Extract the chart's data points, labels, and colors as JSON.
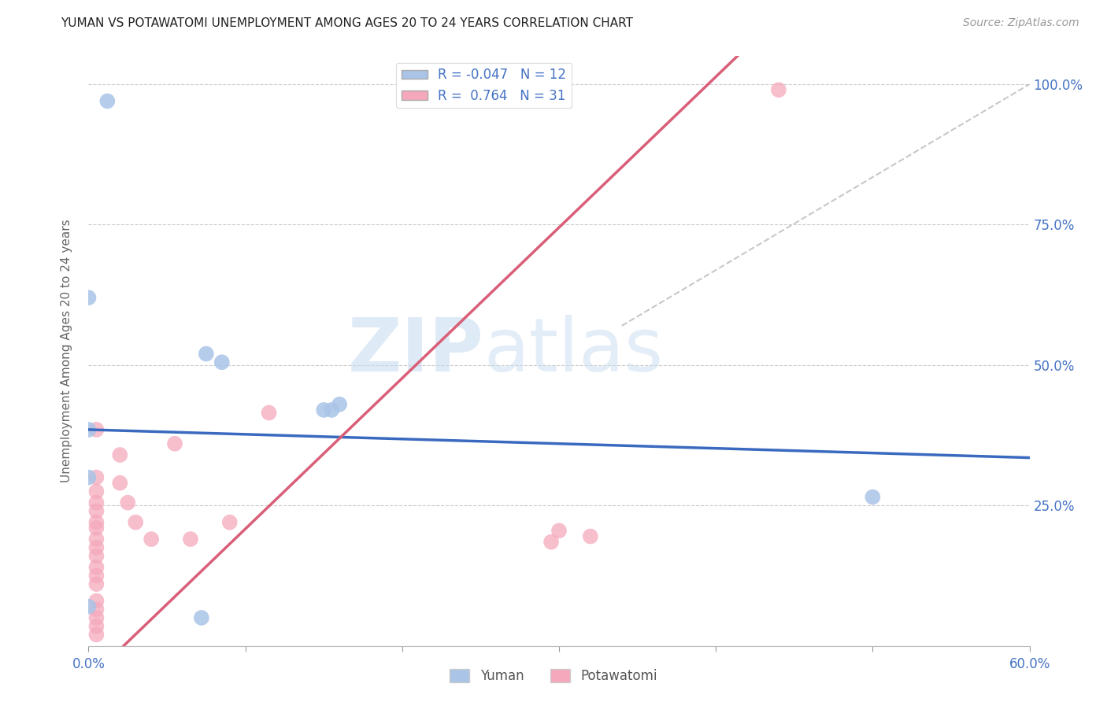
{
  "title": "YUMAN VS POTAWATOMI UNEMPLOYMENT AMONG AGES 20 TO 24 YEARS CORRELATION CHART",
  "source": "Source: ZipAtlas.com",
  "ylabel": "Unemployment Among Ages 20 to 24 years",
  "xlim": [
    0.0,
    0.6
  ],
  "ylim": [
    0.0,
    1.05
  ],
  "ytick_positions": [
    0.0,
    0.25,
    0.5,
    0.75,
    1.0
  ],
  "ytick_labels": [
    "",
    "25.0%",
    "50.0%",
    "75.0%",
    "100.0%"
  ],
  "grid_color": "#cccccc",
  "background_color": "#ffffff",
  "yuman_color": "#aac4e8",
  "potawatomi_color": "#f5a8bc",
  "yuman_line_color": "#3a6abf",
  "potawatomi_line_color": "#d95f78",
  "diagonal_color": "#c8c8c8",
  "yuman_R": -0.047,
  "yuman_N": 12,
  "potawatomi_R": 0.764,
  "potawatomi_N": 31,
  "yuman_line": [
    0.0,
    0.385,
    0.6,
    0.335
  ],
  "potawatomi_line": [
    0.0,
    -0.06,
    0.6,
    1.55
  ],
  "diagonal_line": [
    0.34,
    0.57,
    0.6,
    1.0
  ],
  "yuman_points": [
    [
      0.012,
      0.97
    ],
    [
      0.0,
      0.62
    ],
    [
      0.075,
      0.52
    ],
    [
      0.085,
      0.505
    ],
    [
      0.0,
      0.385
    ],
    [
      0.0,
      0.3
    ],
    [
      0.155,
      0.42
    ],
    [
      0.16,
      0.43
    ],
    [
      0.15,
      0.42
    ],
    [
      0.0,
      0.07
    ],
    [
      0.072,
      0.05
    ],
    [
      0.5,
      0.265
    ]
  ],
  "potawatomi_points": [
    [
      0.44,
      0.99
    ],
    [
      0.005,
      0.385
    ],
    [
      0.02,
      0.34
    ],
    [
      0.005,
      0.3
    ],
    [
      0.005,
      0.275
    ],
    [
      0.005,
      0.255
    ],
    [
      0.005,
      0.24
    ],
    [
      0.005,
      0.22
    ],
    [
      0.005,
      0.21
    ],
    [
      0.005,
      0.19
    ],
    [
      0.005,
      0.175
    ],
    [
      0.005,
      0.16
    ],
    [
      0.005,
      0.14
    ],
    [
      0.005,
      0.125
    ],
    [
      0.005,
      0.11
    ],
    [
      0.005,
      0.08
    ],
    [
      0.005,
      0.065
    ],
    [
      0.005,
      0.05
    ],
    [
      0.005,
      0.035
    ],
    [
      0.005,
      0.02
    ],
    [
      0.02,
      0.29
    ],
    [
      0.025,
      0.255
    ],
    [
      0.03,
      0.22
    ],
    [
      0.04,
      0.19
    ],
    [
      0.055,
      0.36
    ],
    [
      0.065,
      0.19
    ],
    [
      0.09,
      0.22
    ],
    [
      0.115,
      0.415
    ],
    [
      0.295,
      0.185
    ],
    [
      0.3,
      0.205
    ],
    [
      0.32,
      0.195
    ]
  ]
}
